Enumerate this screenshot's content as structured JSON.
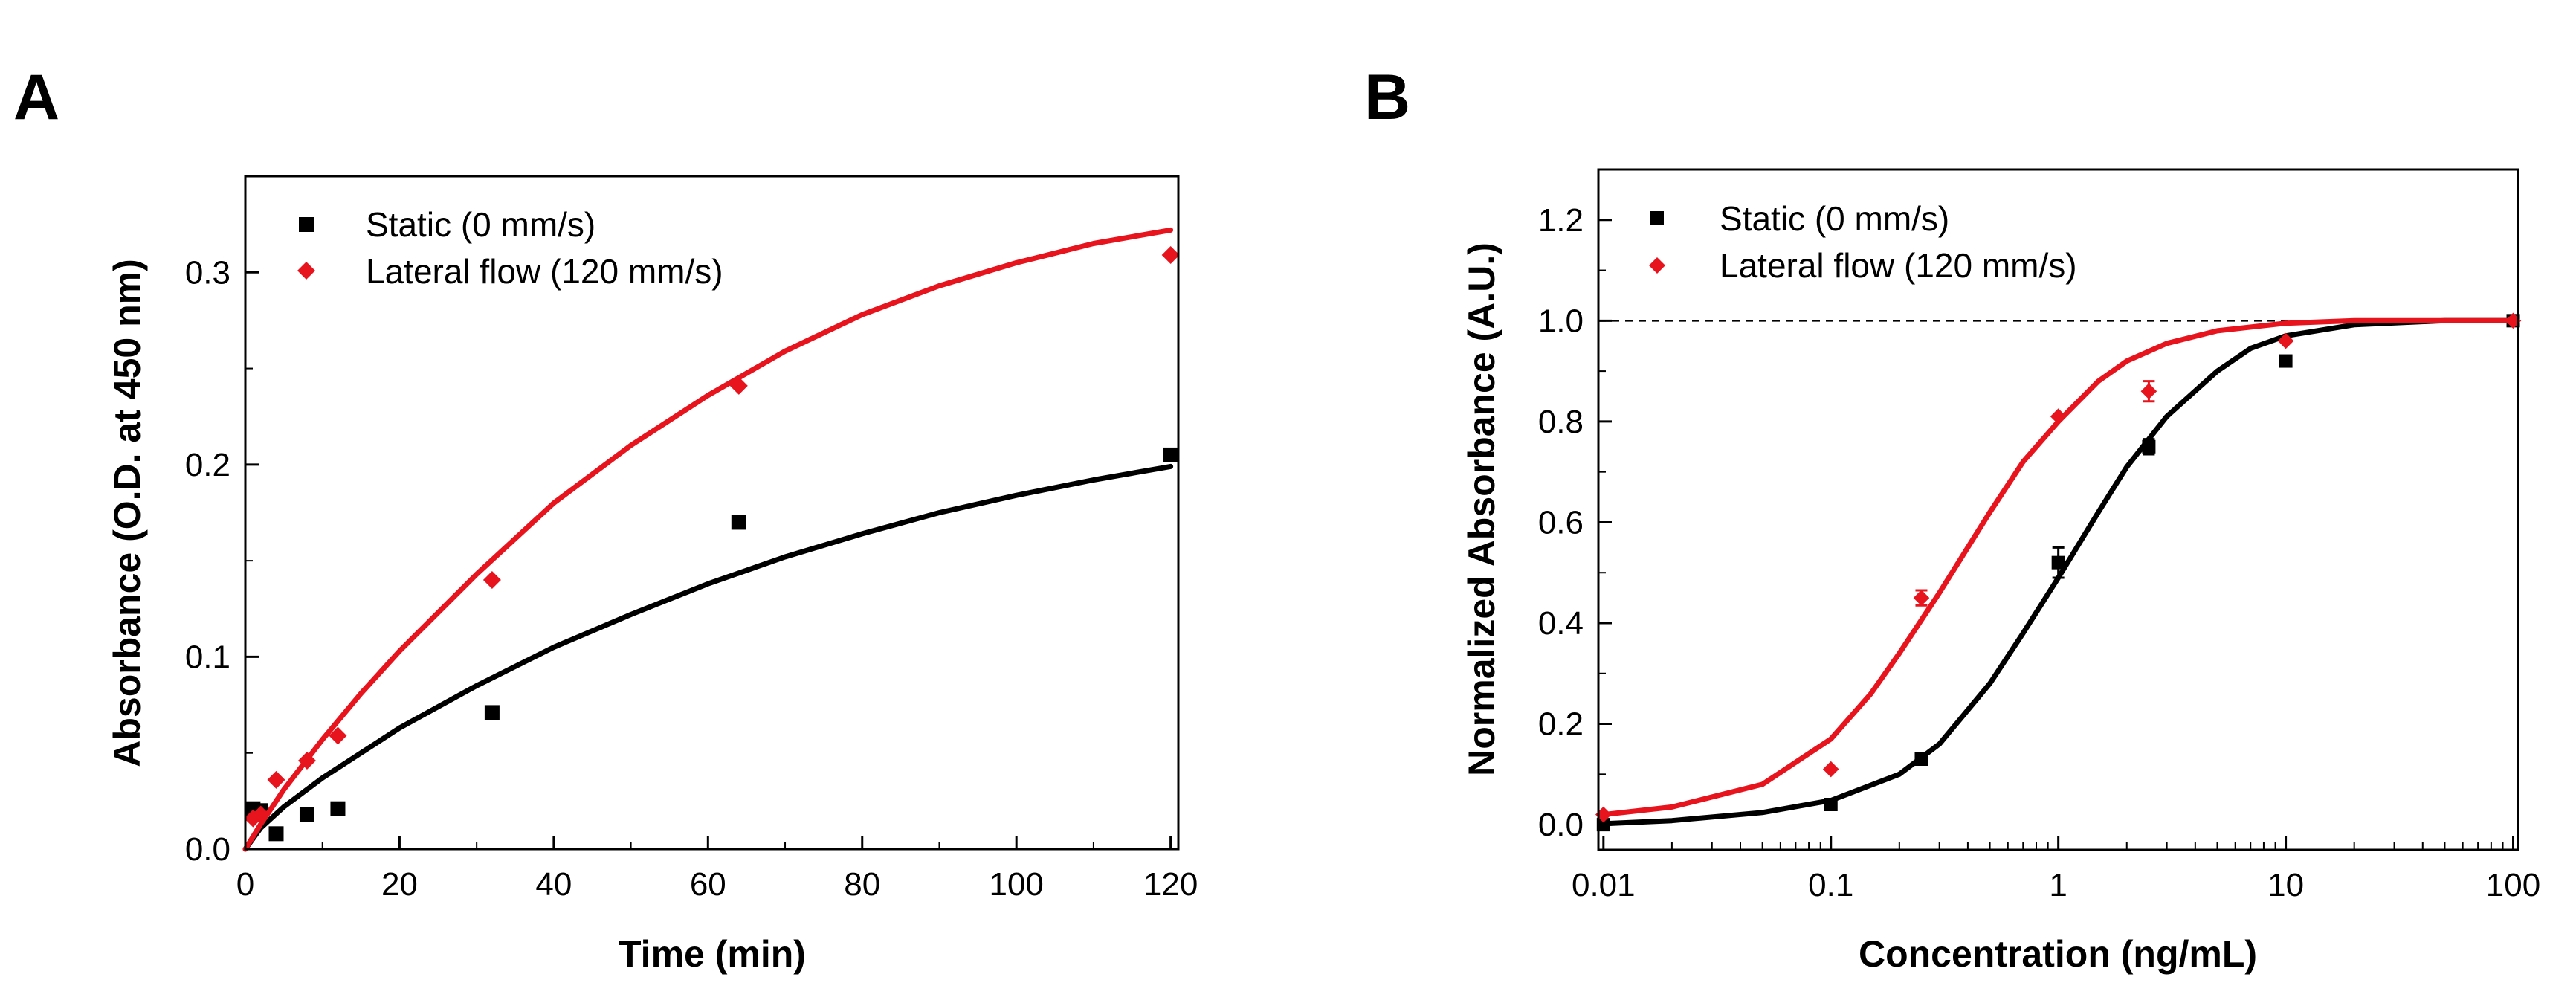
{
  "chart_data": [
    {
      "panel_label": "A",
      "type": "scatter",
      "xlabel": "Time (min)",
      "ylabel": "Absorbance (O.D. at 450 nm)",
      "xlim": [
        0,
        121
      ],
      "ylim": [
        0,
        0.35
      ],
      "xticks": [
        0,
        20,
        40,
        60,
        80,
        100,
        120
      ],
      "yticks": [
        0.0,
        0.1,
        0.2,
        0.3
      ],
      "ytick_labels": [
        "0.0",
        "0.1",
        "0.2",
        "0.3"
      ],
      "legend_position": "top-left",
      "series": [
        {
          "name": "Static (0 mm/s)",
          "color": "#000000",
          "marker": "square",
          "x": [
            1,
            2,
            4,
            8,
            12,
            32,
            64,
            120
          ],
          "y": [
            0.021,
            0.02,
            0.008,
            0.018,
            0.021,
            0.071,
            0.17,
            0.205
          ],
          "fit": {
            "x": [
              0,
              2,
              5,
              10,
              15,
              20,
              30,
              40,
              50,
              60,
              70,
              80,
              90,
              100,
              110,
              120
            ],
            "y": [
              0.0,
              0.011,
              0.022,
              0.037,
              0.05,
              0.063,
              0.085,
              0.105,
              0.122,
              0.138,
              0.152,
              0.164,
              0.175,
              0.184,
              0.192,
              0.199
            ]
          }
        },
        {
          "name": "Lateral flow (120 mm/s)",
          "color": "#e8141d",
          "marker": "diamond",
          "x": [
            1,
            2,
            4,
            8,
            12,
            32,
            64,
            120
          ],
          "y": [
            0.016,
            0.018,
            0.036,
            0.046,
            0.059,
            0.14,
            0.241,
            0.309
          ],
          "fit": {
            "x": [
              0,
              2,
              5,
              10,
              15,
              20,
              30,
              40,
              50,
              60,
              70,
              80,
              90,
              100,
              110,
              120
            ],
            "y": [
              0.0,
              0.013,
              0.031,
              0.057,
              0.081,
              0.103,
              0.143,
              0.18,
              0.21,
              0.236,
              0.259,
              0.278,
              0.293,
              0.305,
              0.315,
              0.322
            ]
          }
        }
      ]
    },
    {
      "panel_label": "B",
      "type": "scatter",
      "xscale": "log",
      "xlabel": "Concentration (ng/mL)",
      "ylabel": "Normalized Absorbance (A.U.)",
      "xlim": [
        0.0095,
        105
      ],
      "ylim": [
        -0.05,
        1.3
      ],
      "xticks": [
        0.01,
        0.1,
        1,
        10,
        100
      ],
      "xtick_labels": [
        "0.01",
        "0.1",
        "1",
        "10",
        "100"
      ],
      "yticks": [
        0.0,
        0.2,
        0.4,
        0.6,
        0.8,
        1.0,
        1.2
      ],
      "ytick_labels": [
        "0.0",
        "0.2",
        "0.4",
        "0.6",
        "0.8",
        "1.0",
        "1.2"
      ],
      "reference_line_y": 1.0,
      "legend_position": "top-left",
      "series": [
        {
          "name": "Static (0 mm/s)",
          "color": "#000000",
          "marker": "square",
          "x": [
            0.01,
            0.1,
            0.25,
            1,
            2.5,
            10,
            100
          ],
          "y": [
            0.0,
            0.04,
            0.13,
            0.52,
            0.75,
            0.92,
            1.0
          ],
          "err": [
            0,
            0,
            0,
            0.03,
            0.015,
            0.01,
            0
          ],
          "fit": {
            "x": [
              0.01,
              0.02,
              0.05,
              0.1,
              0.2,
              0.3,
              0.5,
              0.7,
              1,
              1.5,
              2,
              3,
              5,
              7,
              10,
              20,
              50,
              100
            ],
            "y": [
              0.002,
              0.008,
              0.024,
              0.048,
              0.1,
              0.16,
              0.28,
              0.38,
              0.49,
              0.62,
              0.71,
              0.81,
              0.9,
              0.945,
              0.97,
              0.992,
              1.0,
              1.0
            ]
          }
        },
        {
          "name": "Lateral flow (120 mm/s)",
          "color": "#e8141d",
          "marker": "diamond",
          "x": [
            0.01,
            0.1,
            0.25,
            1,
            2.5,
            10,
            100
          ],
          "y": [
            0.02,
            0.11,
            0.45,
            0.81,
            0.86,
            0.96,
            1.0
          ],
          "err": [
            0,
            0,
            0.015,
            0,
            0.02,
            0,
            0
          ],
          "fit": {
            "x": [
              0.01,
              0.02,
              0.05,
              0.1,
              0.15,
              0.2,
              0.3,
              0.5,
              0.7,
              1,
              1.5,
              2,
              3,
              5,
              10,
              20,
              50,
              100
            ],
            "y": [
              0.02,
              0.035,
              0.08,
              0.17,
              0.26,
              0.34,
              0.46,
              0.62,
              0.72,
              0.8,
              0.88,
              0.92,
              0.955,
              0.98,
              0.995,
              1.0,
              1.0,
              1.0
            ]
          }
        }
      ]
    }
  ]
}
